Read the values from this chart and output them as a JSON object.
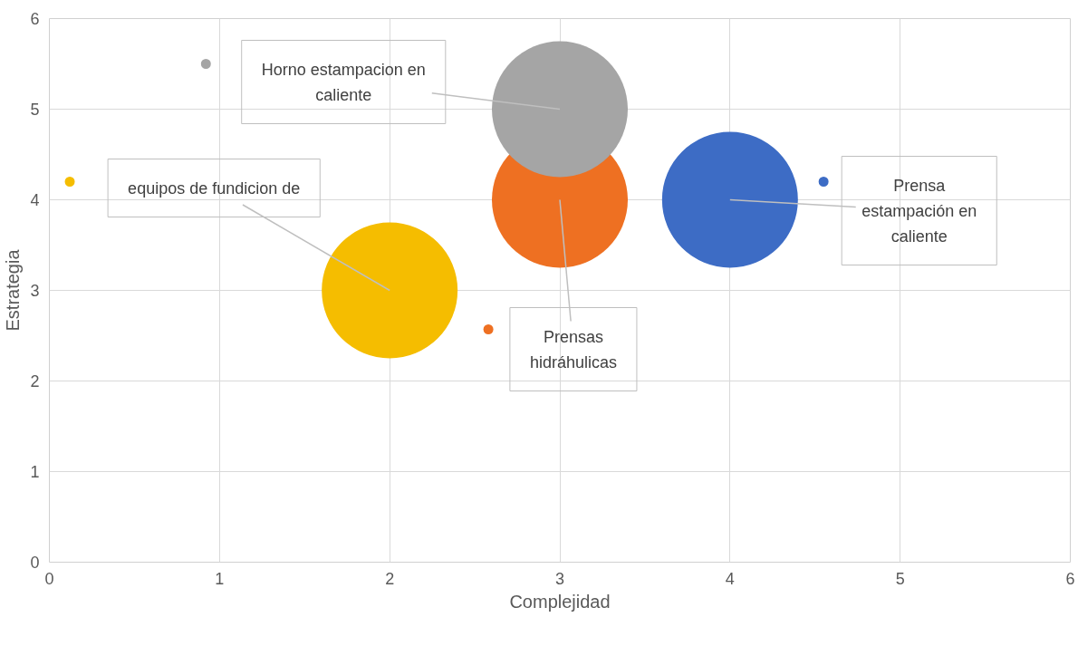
{
  "chart_data": {
    "type": "bubble",
    "xlabel": "Complejidad",
    "ylabel": "Estrategia",
    "xlim": [
      0,
      6
    ],
    "xticks": [
      0,
      1,
      2,
      3,
      4,
      5,
      6
    ],
    "ylim": [
      0,
      6
    ],
    "yticks": [
      0,
      1,
      2,
      3,
      4,
      5,
      6
    ],
    "grid": true,
    "series": [
      {
        "x": [
          2,
          3,
          3,
          4
        ],
        "values": [
          3,
          4,
          5,
          4
        ],
        "sizes": [
          1,
          1,
          1,
          1
        ],
        "colors": [
          "#f5bd00",
          "#ee7022",
          "#a5a5a5",
          "#3d6cc5"
        ]
      },
      {
        "type": "scatter",
        "x": [
          0.12,
          0.92,
          2.58,
          4.55
        ],
        "values": [
          4.2,
          5.5,
          2.57,
          4.2
        ],
        "colors": [
          "#f5bd00",
          "#a5a5a5",
          "#ee7022",
          "#3d6cc5"
        ],
        "marker": "circle"
      }
    ],
    "annotations": [
      {
        "text": "equipos de fundicion de",
        "x": 2,
        "y": 3
      },
      {
        "text": "Prensas\nhidráhulicas",
        "x": 3,
        "y": 4
      },
      {
        "text": "Horno estampacion en\ncaliente",
        "x": 3,
        "y": 5
      },
      {
        "text": "Prensa\nestampación en\ncaliente",
        "x": 4,
        "y": 4
      }
    ]
  }
}
